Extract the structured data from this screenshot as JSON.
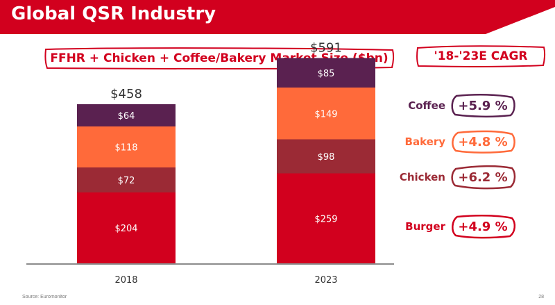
{
  "header": {
    "title": "Global QSR Industry"
  },
  "cagr_title": "'18-'23E CAGR",
  "chart_data": {
    "type": "stacked-bar",
    "title": "FFHR + Chicken + Coffee/Bakery Market Size ($bn)",
    "categories": [
      "2018",
      "2023"
    ],
    "totals": [
      "$458",
      "$591"
    ],
    "series": [
      {
        "name": "Burger",
        "color": "#d2001e",
        "values": [
          204,
          259
        ],
        "labels": [
          "$204",
          "$259"
        ]
      },
      {
        "name": "Chicken",
        "color": "#9b2a35",
        "values": [
          72,
          98
        ],
        "labels": [
          "$72",
          "$98"
        ]
      },
      {
        "name": "Bakery",
        "color": "#ff6a3a",
        "values": [
          118,
          149
        ],
        "labels": [
          "$118",
          "$149"
        ]
      },
      {
        "name": "Coffee",
        "color": "#5a2150",
        "values": [
          64,
          85
        ],
        "labels": [
          "$64",
          "$85"
        ]
      }
    ]
  },
  "legend": [
    {
      "name": "Coffee",
      "cagr": "+5.9 %",
      "color": "#5a2150"
    },
    {
      "name": "Bakery",
      "cagr": "+4.8 %",
      "color": "#ff6a3a"
    },
    {
      "name": "Chicken",
      "cagr": "+6.2 %",
      "color": "#9b2a35"
    },
    {
      "name": "Burger",
      "cagr": "+4.9 %",
      "color": "#d2001e"
    }
  ],
  "colors": {
    "brand_red": "#d2001e",
    "axis": "#8c8c8c"
  },
  "footer": {
    "source": "Source: Euromonitor",
    "page": "28"
  }
}
